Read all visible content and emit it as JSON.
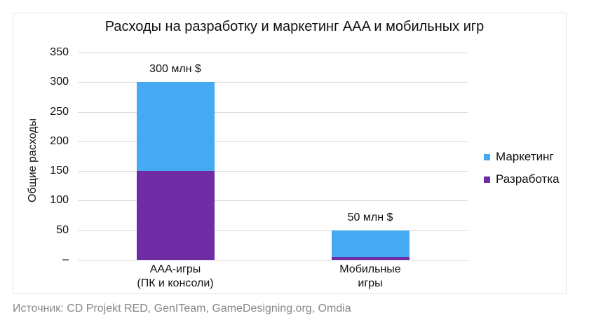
{
  "chart_data": {
    "type": "bar",
    "stacked": true,
    "title": "Расходы на разработку и маркетинг AAA и мобильных игр",
    "xlabel": "",
    "ylabel": "Общие расходы",
    "ylim": [
      0,
      350
    ],
    "yticks": [
      "–",
      "50",
      "100",
      "150",
      "200",
      "250",
      "300",
      "350"
    ],
    "ytick_values": [
      0,
      50,
      100,
      150,
      200,
      250,
      300,
      350
    ],
    "grid": true,
    "legend_position": "right",
    "categories": [
      "AAA-игры (ПК и консоли)",
      "Мобильные игры"
    ],
    "category_lines": [
      [
        "AAA-игры",
        "(ПК и консоли)"
      ],
      [
        "Мобильные",
        "игры"
      ]
    ],
    "series": [
      {
        "name": "Разработка",
        "color": "#6e2ca5",
        "values": [
          150,
          5
        ]
      },
      {
        "name": "Маркетинг",
        "color": "#45aaf2",
        "values": [
          150,
          45
        ]
      }
    ],
    "totals": [
      300,
      50
    ],
    "data_labels": [
      "300 млн $",
      "50 млн $"
    ],
    "source": "Источник: CD Projekt RED, GenITeam, GameDesigning.org, Omdia"
  },
  "legend": [
    {
      "label": "Маркетинг",
      "color": "#45aaf2"
    },
    {
      "label": "Разработка",
      "color": "#6e2ca5"
    }
  ]
}
